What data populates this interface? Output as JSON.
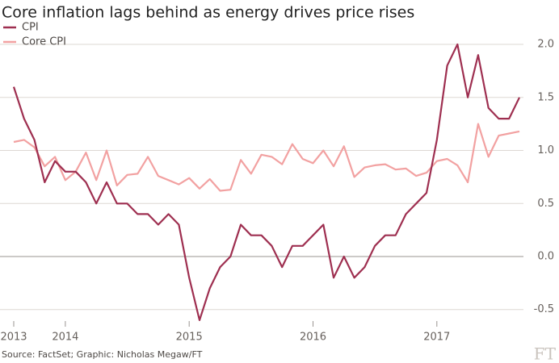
{
  "chart_data": {
    "type": "line",
    "title": "Core inflation lags behind as energy drives price rises",
    "source": "Source: FactSet; Graphic: Nicholas Megaw/FT",
    "logo": "FT",
    "categories": [
      "2013",
      null,
      null,
      null,
      null,
      "2014",
      null,
      null,
      null,
      null,
      null,
      null,
      null,
      null,
      null,
      null,
      null,
      "2015",
      null,
      null,
      null,
      null,
      null,
      null,
      null,
      null,
      null,
      null,
      null,
      "2016",
      null,
      null,
      null,
      null,
      null,
      null,
      null,
      null,
      null,
      null,
      null,
      "2017",
      null,
      null,
      null,
      null,
      null,
      null,
      null,
      null
    ],
    "series": [
      {
        "name": "CPI",
        "color": "#9e2f50",
        "values": [
          1.6,
          1.3,
          1.1,
          0.7,
          0.9,
          0.8,
          0.8,
          0.7,
          0.5,
          0.7,
          0.5,
          0.5,
          0.4,
          0.4,
          0.3,
          0.4,
          0.3,
          -0.2,
          -0.6,
          -0.3,
          -0.1,
          0.0,
          0.3,
          0.2,
          0.2,
          0.1,
          -0.1,
          0.1,
          0.1,
          0.2,
          0.3,
          -0.2,
          0.0,
          -0.2,
          -0.1,
          0.1,
          0.2,
          0.2,
          0.4,
          0.5,
          0.6,
          1.1,
          1.8,
          2.0,
          1.5,
          1.9,
          1.4,
          1.3,
          1.3,
          1.5
        ]
      },
      {
        "name": "Core CPI",
        "color": "#f2a1a1",
        "values": [
          1.08,
          1.1,
          1.03,
          0.85,
          0.94,
          0.72,
          0.8,
          0.98,
          0.72,
          1.0,
          0.67,
          0.77,
          0.78,
          0.94,
          0.76,
          0.72,
          0.68,
          0.74,
          0.64,
          0.73,
          0.62,
          0.63,
          0.91,
          0.78,
          0.96,
          0.94,
          0.87,
          1.06,
          0.92,
          0.88,
          1.0,
          0.85,
          1.04,
          0.75,
          0.84,
          0.86,
          0.87,
          0.82,
          0.83,
          0.76,
          0.79,
          0.9,
          0.92,
          0.86,
          0.7,
          1.25,
          0.94,
          1.14,
          1.16,
          1.18
        ]
      }
    ],
    "ylim": [
      -0.62,
      2.1
    ],
    "yticks": [
      {
        "value": 2.0,
        "label": "2.0"
      },
      1.5,
      {
        "value": 1.0,
        "label": "1.0"
      },
      0.5,
      {
        "value": 0.0,
        "label": "0.0"
      },
      -0.5
    ],
    "grid": true
  }
}
